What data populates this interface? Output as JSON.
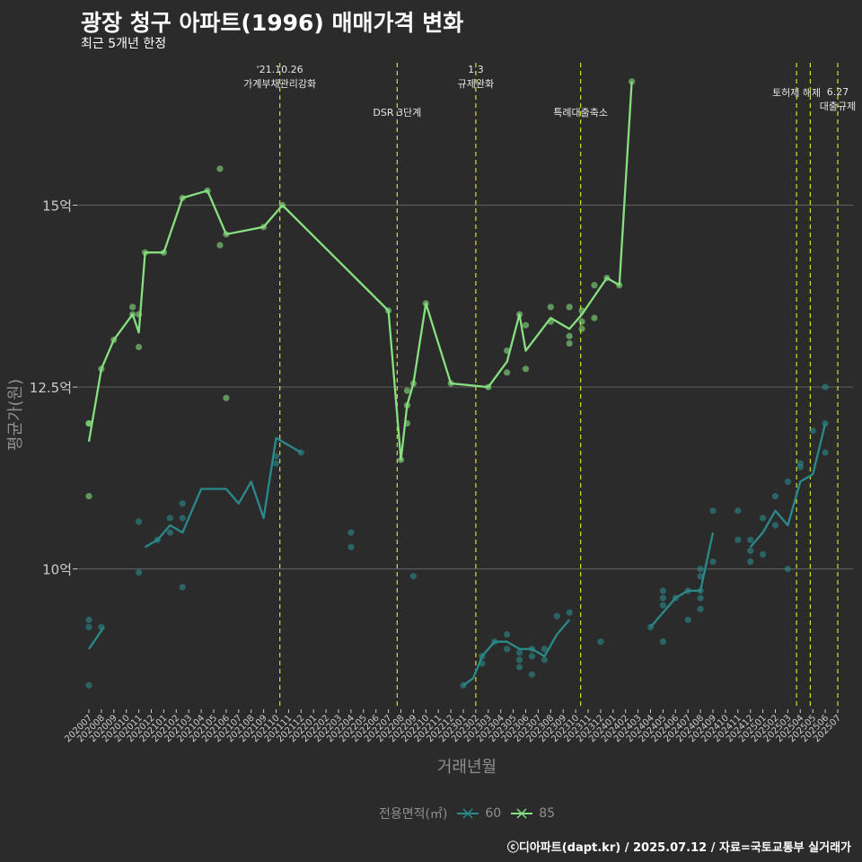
{
  "title": "광장 청구 아파트(1996) 매매가격 변화",
  "subtitle": "최근 5개년 한정",
  "caption": "ⓒ디아파트(dapt.kr) / 2025.07.12 / 자료=국토교통부 실거래가",
  "legend": {
    "title": "전용면적(㎡)"
  },
  "colors": {
    "background": "#2b2b2c",
    "grid": "#5a5a5a",
    "area60": "#2a8a8a",
    "area85": "#86e07e",
    "event": "#d4e02a",
    "axis_text": "#cccccc"
  },
  "chart_data": {
    "type": "line",
    "title": "광장 청구 아파트(1996) 매매가격 변화",
    "subtitle": "최근 5개년 한정",
    "xlabel": "거래년월",
    "ylabel": "평균가(원)",
    "ylim": [
      8.07,
      17.08
    ],
    "grid": true,
    "legend_position": "bottom",
    "x_categories": [
      "202007",
      "202008",
      "202009",
      "202010",
      "202011",
      "202012",
      "202101",
      "202102",
      "202103",
      "202104",
      "202105",
      "202106",
      "202107",
      "202108",
      "202109",
      "202110",
      "202111",
      "202112",
      "202201",
      "202202",
      "202203",
      "202204",
      "202205",
      "202206",
      "202207",
      "202208",
      "202209",
      "202210",
      "202211",
      "202212",
      "202301",
      "202302",
      "202303",
      "202304",
      "202305",
      "202306",
      "202307",
      "202308",
      "202309",
      "202310",
      "202311",
      "202312",
      "202401",
      "202402",
      "202403",
      "202404",
      "202405",
      "202406",
      "202407",
      "202408",
      "202409",
      "202410",
      "202411",
      "202412",
      "202501",
      "202502",
      "202503",
      "202504",
      "202505",
      "202506",
      "202507"
    ],
    "y_ticks": [
      {
        "value": 10,
        "label": "10억"
      },
      {
        "value": 12.5,
        "label": "12.5억"
      },
      {
        "value": 15,
        "label": "15억"
      }
    ],
    "events": [
      {
        "x": 15.3,
        "line1": "'21.10.26",
        "line2": "가계부채관리강화",
        "level": 0
      },
      {
        "x": 24.7,
        "line1": "",
        "line2": "DSR 3단계",
        "level": 1
      },
      {
        "x": 31.0,
        "line1": "1.3",
        "line2": "규제완화",
        "level": 0
      },
      {
        "x": 39.4,
        "line1": "",
        "line2": "특례대출축소",
        "level": 1
      },
      {
        "x": 56.7,
        "line1": "",
        "line2": "토허제 해제",
        "level": 2
      },
      {
        "x": 57.8,
        "line1": "",
        "line2": "",
        "level": 2
      },
      {
        "x": 60.0,
        "line1": "6.27",
        "line2": "대출규제",
        "level": 3
      }
    ],
    "series": [
      {
        "name": "60",
        "color": "#2a8a8a",
        "line": [
          [
            [
              0,
              8.9
            ],
            [
              1.2,
              9.2
            ]
          ],
          [
            [
              4.5,
              10.3
            ],
            [
              5.5,
              10.4
            ],
            [
              6.5,
              10.6
            ],
            [
              7.5,
              10.5
            ],
            [
              9,
              11.1
            ],
            [
              11,
              11.1
            ],
            [
              12,
              10.9
            ],
            [
              13,
              11.2
            ],
            [
              14,
              10.7
            ],
            [
              15,
              11.8
            ],
            [
              17,
              11.6
            ]
          ],
          [
            [
              30,
              8.4
            ],
            [
              30.8,
              8.5
            ],
            [
              31.5,
              8.8
            ],
            [
              32.5,
              9.0
            ],
            [
              33.5,
              9.0
            ],
            [
              34.5,
              8.9
            ],
            [
              35.5,
              8.9
            ],
            [
              36.5,
              8.8
            ],
            [
              37.5,
              9.1
            ],
            [
              38.5,
              9.3
            ]
          ],
          [
            [
              45,
              9.2
            ],
            [
              46,
              9.4
            ],
            [
              47,
              9.6
            ],
            [
              48,
              9.7
            ],
            [
              49,
              9.7
            ],
            [
              50,
              10.5
            ]
          ],
          [
            [
              53,
              10.3
            ],
            [
              54,
              10.5
            ],
            [
              55,
              10.8
            ],
            [
              56,
              10.6
            ],
            [
              57,
              11.2
            ],
            [
              58,
              11.3
            ],
            [
              59,
              12.0
            ]
          ]
        ],
        "points": [
          [
            0,
            9.3
          ],
          [
            0,
            9.2
          ],
          [
            0,
            8.4
          ],
          [
            1,
            9.2
          ],
          [
            4,
            10.65
          ],
          [
            4,
            9.95
          ],
          [
            5.5,
            10.4
          ],
          [
            6.5,
            10.7
          ],
          [
            6.5,
            10.5
          ],
          [
            7.5,
            10.9
          ],
          [
            7.5,
            10.7
          ],
          [
            7.5,
            9.75
          ],
          [
            15,
            11.55
          ],
          [
            15,
            11.45
          ],
          [
            17,
            11.6
          ],
          [
            21,
            10.5
          ],
          [
            21,
            10.3
          ],
          [
            26,
            9.9
          ],
          [
            30,
            8.4
          ],
          [
            31.5,
            8.8
          ],
          [
            31.5,
            8.7
          ],
          [
            32.5,
            9.0
          ],
          [
            33.5,
            9.1
          ],
          [
            33.5,
            8.9
          ],
          [
            34.5,
            8.85
          ],
          [
            34.5,
            8.75
          ],
          [
            34.5,
            8.65
          ],
          [
            35.5,
            8.9
          ],
          [
            35.5,
            8.8
          ],
          [
            35.5,
            8.55
          ],
          [
            36.5,
            8.9
          ],
          [
            36.5,
            8.75
          ],
          [
            37.5,
            9.35
          ],
          [
            38.5,
            9.4
          ],
          [
            41,
            9.0
          ],
          [
            45,
            9.2
          ],
          [
            46,
            9.6
          ],
          [
            46,
            9.7
          ],
          [
            46,
            9.5
          ],
          [
            46,
            9.0
          ],
          [
            47,
            9.6
          ],
          [
            48,
            9.7
          ],
          [
            48,
            9.3
          ],
          [
            49,
            9.7
          ],
          [
            49,
            9.6
          ],
          [
            49,
            9.45
          ],
          [
            49,
            9.9
          ],
          [
            49,
            10.0
          ],
          [
            50,
            10.8
          ],
          [
            50,
            10.1
          ],
          [
            52,
            10.8
          ],
          [
            52,
            10.4
          ],
          [
            53,
            10.4
          ],
          [
            53,
            10.25
          ],
          [
            53,
            10.1
          ],
          [
            54,
            10.7
          ],
          [
            54,
            10.2
          ],
          [
            55,
            11.0
          ],
          [
            55,
            10.6
          ],
          [
            56,
            11.2
          ],
          [
            56,
            10.0
          ],
          [
            57,
            11.45
          ],
          [
            57,
            11.4
          ],
          [
            58,
            11.9
          ],
          [
            59,
            12.5
          ],
          [
            59,
            12.0
          ],
          [
            59,
            11.6
          ]
        ]
      },
      {
        "name": "85",
        "color": "#86e07e",
        "line": [
          [
            [
              0,
              11.75
            ],
            [
              1,
              12.75
            ],
            [
              2,
              13.15
            ],
            [
              3.5,
              13.5
            ],
            [
              4,
              13.25
            ],
            [
              4.5,
              14.35
            ],
            [
              6,
              14.35
            ],
            [
              7.5,
              15.1
            ],
            [
              9.5,
              15.2
            ],
            [
              11,
              14.6
            ],
            [
              14,
              14.7
            ],
            [
              15.5,
              15.0
            ],
            [
              24,
              13.55
            ],
            [
              25,
              11.5
            ],
            [
              25.5,
              12.25
            ],
            [
              26,
              12.55
            ],
            [
              27,
              13.65
            ],
            [
              29,
              12.55
            ],
            [
              32,
              12.5
            ],
            [
              33.5,
              12.85
            ],
            [
              34.5,
              13.5
            ],
            [
              35,
              13.0
            ],
            [
              37,
              13.45
            ],
            [
              38.5,
              13.3
            ],
            [
              39.5,
              13.5
            ],
            [
              41.5,
              14.0
            ],
            [
              42.5,
              13.9
            ],
            [
              43.5,
              16.7
            ]
          ]
        ],
        "points": [
          [
            0,
            12.0
          ],
          [
            0,
            12.0
          ],
          [
            0,
            11.0
          ],
          [
            1,
            12.75
          ],
          [
            2,
            13.15
          ],
          [
            3.5,
            13.6
          ],
          [
            3.5,
            13.5
          ],
          [
            4,
            13.5
          ],
          [
            4,
            13.05
          ],
          [
            4.5,
            14.35
          ],
          [
            6,
            14.35
          ],
          [
            7.5,
            15.1
          ],
          [
            9.5,
            15.2
          ],
          [
            10.5,
            15.5
          ],
          [
            10.5,
            14.45
          ],
          [
            11,
            12.35
          ],
          [
            11,
            14.6
          ],
          [
            14,
            14.7
          ],
          [
            15.5,
            15.0
          ],
          [
            24,
            13.55
          ],
          [
            25,
            11.5
          ],
          [
            25.5,
            12.45
          ],
          [
            25.5,
            12.25
          ],
          [
            25.5,
            12.0
          ],
          [
            26,
            12.55
          ],
          [
            27,
            13.65
          ],
          [
            29,
            12.55
          ],
          [
            32,
            12.5
          ],
          [
            33.5,
            13.0
          ],
          [
            33.5,
            12.7
          ],
          [
            34.5,
            13.5
          ],
          [
            35,
            13.35
          ],
          [
            35,
            12.75
          ],
          [
            37,
            13.6
          ],
          [
            37,
            13.4
          ],
          [
            38.5,
            13.2
          ],
          [
            38.5,
            13.1
          ],
          [
            38.5,
            13.6
          ],
          [
            39.5,
            13.55
          ],
          [
            39.5,
            13.4
          ],
          [
            39.5,
            13.3
          ],
          [
            40.5,
            13.9
          ],
          [
            40.5,
            13.45
          ],
          [
            41.5,
            14.0
          ],
          [
            42.5,
            13.9
          ],
          [
            43.5,
            16.7
          ]
        ]
      }
    ]
  }
}
